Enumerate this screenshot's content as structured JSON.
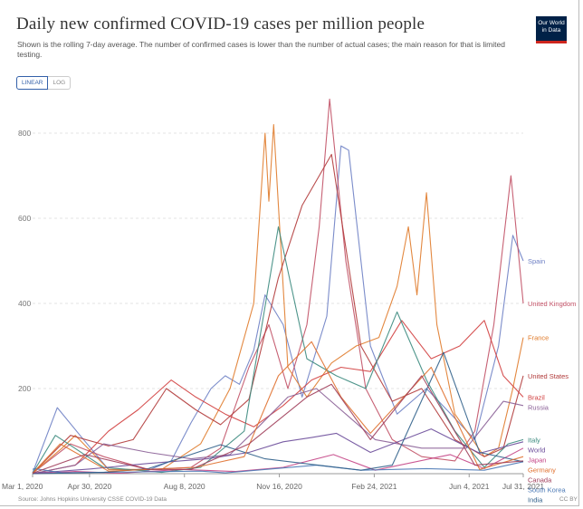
{
  "header": {
    "title": "Daily new confirmed COVID-19 cases per million people",
    "subtitle": "Shown is the rolling 7-day average. The number of confirmed cases is lower than the number of actual cases; the main reason for that is limited testing.",
    "logo_text": "Our World in Data",
    "logo_color": "#002147",
    "logo_accent": "#ce261e"
  },
  "controls": {
    "linear_label": "LINEAR",
    "log_label": "LOG",
    "active": "linear"
  },
  "footer": {
    "source": "Source: Johns Hopkins University CSSE COVID-19 Data",
    "license": "CC BY"
  },
  "chart_data": {
    "type": "line",
    "title": "Daily new confirmed COVID-19 cases per million people",
    "ylim": [
      0,
      900
    ],
    "y_ticks": [
      0,
      200,
      400,
      600,
      800
    ],
    "y_tick_labels": [
      "",
      "200",
      "400",
      "600",
      "800"
    ],
    "xlim": [
      "2020-03-01",
      "2021-07-31"
    ],
    "x_ticks": [
      {
        "date": "2020-03-01",
        "label": "Mar 1, 2020"
      },
      {
        "date": "2020-04-30",
        "label": "Apr 30, 2020"
      },
      {
        "date": "2020-08-08",
        "label": "Aug 8, 2020"
      },
      {
        "date": "2020-11-16",
        "label": "Nov 16, 2020"
      },
      {
        "date": "2021-02-24",
        "label": "Feb 24, 2021"
      },
      {
        "date": "2021-06-04",
        "label": "Jun 4, 2021"
      },
      {
        "date": "2021-07-31",
        "label": "Jul 31, 2021"
      }
    ],
    "grid": true,
    "legend": "right, labels at line ends",
    "series": [
      {
        "name": "Spain",
        "color": "#6d7fc4",
        "x": [
          "2020-03-01",
          "2020-03-27",
          "2020-04-20",
          "2020-05-20",
          "2020-07-01",
          "2020-07-25",
          "2020-08-15",
          "2020-09-05",
          "2020-09-20",
          "2020-10-05",
          "2020-10-20",
          "2020-11-01",
          "2020-11-20",
          "2020-12-10",
          "2021-01-05",
          "2021-01-20",
          "2021-01-28",
          "2021-02-20",
          "2021-03-20",
          "2021-04-20",
          "2021-05-20",
          "2021-06-10",
          "2021-07-05",
          "2021-07-20",
          "2021-07-31"
        ],
        "y": [
          2,
          155,
          90,
          10,
          8,
          30,
          120,
          200,
          230,
          210,
          290,
          420,
          350,
          180,
          370,
          770,
          760,
          300,
          140,
          200,
          130,
          80,
          300,
          560,
          500
        ]
      },
      {
        "name": "United Kingdom",
        "color": "#c15065",
        "x": [
          "2020-03-01",
          "2020-04-10",
          "2020-05-15",
          "2020-07-01",
          "2020-08-15",
          "2020-09-15",
          "2020-10-15",
          "2020-11-05",
          "2020-11-25",
          "2020-12-15",
          "2020-12-28",
          "2021-01-08",
          "2021-01-25",
          "2021-02-15",
          "2021-03-15",
          "2021-04-15",
          "2021-05-20",
          "2021-06-10",
          "2021-06-30",
          "2021-07-18",
          "2021-07-31"
        ],
        "y": [
          1,
          70,
          40,
          10,
          15,
          60,
          250,
          350,
          200,
          350,
          580,
          880,
          500,
          200,
          80,
          40,
          30,
          100,
          350,
          700,
          400
        ]
      },
      {
        "name": "France",
        "color": "#e07b2b",
        "x": [
          "2020-03-01",
          "2020-04-01",
          "2020-04-15",
          "2020-05-20",
          "2020-07-15",
          "2020-08-25",
          "2020-09-25",
          "2020-10-20",
          "2020-11-01",
          "2020-11-05",
          "2020-11-10",
          "2020-11-25",
          "2020-12-15",
          "2021-01-10",
          "2021-02-05",
          "2021-03-01",
          "2021-03-20",
          "2021-04-01",
          "2021-04-10",
          "2021-04-20",
          "2021-05-01",
          "2021-05-20",
          "2021-06-20",
          "2021-07-05",
          "2021-07-20",
          "2021-07-31"
        ],
        "y": [
          1,
          60,
          90,
          10,
          10,
          70,
          200,
          400,
          800,
          640,
          820,
          250,
          180,
          260,
          300,
          320,
          440,
          580,
          420,
          660,
          350,
          140,
          40,
          60,
          200,
          320
        ]
      },
      {
        "name": "United States",
        "color": "#b13a3a",
        "x": [
          "2020-03-01",
          "2020-04-10",
          "2020-05-20",
          "2020-06-15",
          "2020-07-20",
          "2020-08-20",
          "2020-09-15",
          "2020-10-15",
          "2020-11-15",
          "2020-12-10",
          "2021-01-10",
          "2021-02-10",
          "2021-03-15",
          "2021-04-15",
          "2021-05-20",
          "2021-06-20",
          "2021-07-10",
          "2021-07-31"
        ],
        "y": [
          1,
          90,
          65,
          80,
          200,
          150,
          115,
          175,
          460,
          630,
          750,
          300,
          170,
          200,
          80,
          40,
          60,
          230
        ]
      },
      {
        "name": "Brazil",
        "color": "#d13f3f",
        "x": [
          "2020-03-01",
          "2020-04-15",
          "2020-05-20",
          "2020-06-20",
          "2020-07-25",
          "2020-08-20",
          "2020-09-20",
          "2020-10-20",
          "2020-11-20",
          "2020-12-20",
          "2021-01-20",
          "2021-02-20",
          "2021-03-25",
          "2021-04-25",
          "2021-05-25",
          "2021-06-20",
          "2021-07-10",
          "2021-07-31"
        ],
        "y": [
          0,
          20,
          100,
          150,
          220,
          180,
          140,
          110,
          160,
          220,
          250,
          240,
          360,
          270,
          300,
          360,
          230,
          180
        ]
      },
      {
        "name": "Russia",
        "color": "#8a5f96",
        "x": [
          "2020-03-01",
          "2020-04-15",
          "2020-05-15",
          "2020-07-01",
          "2020-08-15",
          "2020-09-25",
          "2020-10-25",
          "2020-11-25",
          "2020-12-25",
          "2021-01-25",
          "2021-02-25",
          "2021-04-15",
          "2021-06-01",
          "2021-07-10",
          "2021-07-31"
        ],
        "y": [
          0,
          20,
          70,
          50,
          35,
          45,
          110,
          180,
          200,
          140,
          80,
          60,
          60,
          170,
          160
        ]
      },
      {
        "name": "Italy",
        "color": "#3b8a7e",
        "x": [
          "2020-03-01",
          "2020-03-25",
          "2020-05-15",
          "2020-07-15",
          "2020-08-25",
          "2020-10-10",
          "2020-11-15",
          "2020-12-15",
          "2021-01-15",
          "2021-02-15",
          "2021-03-20",
          "2021-04-20",
          "2021-05-20",
          "2021-06-20",
          "2021-07-15",
          "2021-07-31"
        ],
        "y": [
          1,
          90,
          15,
          3,
          15,
          100,
          580,
          270,
          230,
          200,
          380,
          220,
          100,
          15,
          70,
          80
        ]
      },
      {
        "name": "World",
        "color": "#6b4c9a",
        "x": [
          "2020-03-01",
          "2020-05-01",
          "2020-07-01",
          "2020-09-01",
          "2020-10-15",
          "2020-11-20",
          "2020-12-20",
          "2021-01-15",
          "2021-02-20",
          "2021-04-25",
          "2021-06-15",
          "2021-07-31"
        ],
        "y": [
          1,
          11,
          24,
          35,
          50,
          75,
          85,
          95,
          50,
          105,
          48,
          75
        ]
      },
      {
        "name": "Japan",
        "color": "#c44586",
        "x": [
          "2020-03-01",
          "2020-04-15",
          "2020-06-01",
          "2020-08-05",
          "2020-10-01",
          "2020-11-20",
          "2021-01-12",
          "2021-02-25",
          "2021-05-15",
          "2021-06-20",
          "2021-07-31"
        ],
        "y": [
          0,
          5,
          1,
          10,
          5,
          15,
          45,
          8,
          45,
          12,
          60
        ]
      },
      {
        "name": "South Korea",
        "color": "#4a78b5",
        "x": [
          "2020-03-01",
          "2020-03-03",
          "2020-04-01",
          "2020-08-25",
          "2020-09-20",
          "2020-12-25",
          "2021-02-10",
          "2021-04-20",
          "2021-06-20",
          "2021-07-31"
        ],
        "y": [
          10,
          12,
          2,
          6,
          2,
          20,
          8,
          12,
          8,
          28
        ]
      },
      {
        "name": "India",
        "color": "#2f5f8a",
        "x": [
          "2020-03-01",
          "2020-05-15",
          "2020-07-01",
          "2020-09-15",
          "2020-11-01",
          "2021-02-10",
          "2021-03-15",
          "2021-05-08",
          "2021-06-15",
          "2021-07-31"
        ],
        "y": [
          0,
          3,
          12,
          68,
          35,
          8,
          20,
          285,
          50,
          28
        ]
      },
      {
        "name": "Germany",
        "color": "#e0702e",
        "x": [
          "2020-03-01",
          "2020-03-30",
          "2020-05-20",
          "2020-08-20",
          "2020-10-10",
          "2020-11-15",
          "2020-12-20",
          "2021-01-20",
          "2021-02-20",
          "2021-04-25",
          "2021-06-15",
          "2021-07-31"
        ],
        "y": [
          1,
          70,
          6,
          15,
          40,
          230,
          310,
          180,
          95,
          250,
          10,
          40
        ]
      },
      {
        "name": "Canada",
        "color": "#a03e5a",
        "x": [
          "2020-03-01",
          "2020-04-25",
          "2020-07-01",
          "2020-08-15",
          "2020-10-15",
          "2020-12-15",
          "2021-01-10",
          "2021-02-20",
          "2021-04-15",
          "2021-06-10",
          "2021-07-31"
        ],
        "y": [
          1,
          45,
          10,
          10,
          70,
          180,
          210,
          80,
          230,
          20,
          30
        ]
      }
    ]
  }
}
